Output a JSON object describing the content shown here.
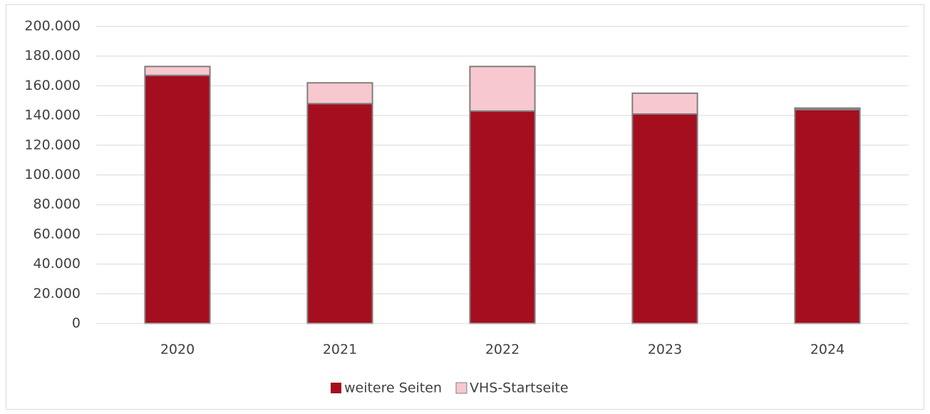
{
  "chart_data": {
    "type": "stacked_bar",
    "categories": [
      "2020",
      "2021",
      "2022",
      "2023",
      "2024"
    ],
    "series": [
      {
        "name": "weitere Seiten",
        "color": "#a50e1e",
        "values": [
          167000,
          148000,
          143000,
          141000,
          144000
        ]
      },
      {
        "name": "VHS-Startseite",
        "color": "#f8c8d0",
        "values": [
          6000,
          14000,
          30000,
          14000,
          1000
        ]
      }
    ],
    "ylim": [
      0,
      200000
    ],
    "yticks": [
      0,
      {
        "value": 20000,
        "label": "20.000"
      },
      {
        "value": 40000,
        "label": "40.000"
      },
      {
        "value": 60000,
        "label": "60.000"
      },
      {
        "value": 80000,
        "label": "80.000"
      },
      {
        "value": 100000,
        "label": "100.000"
      },
      {
        "value": 120000,
        "label": "120.000"
      },
      {
        "value": 140000,
        "label": "140.000"
      },
      {
        "value": 160000,
        "label": "160.000"
      },
      {
        "value": 180000,
        "label": "180.000"
      },
      {
        "value": 200000,
        "label": "200.000"
      }
    ],
    "grid": true,
    "legend": "bottom"
  }
}
